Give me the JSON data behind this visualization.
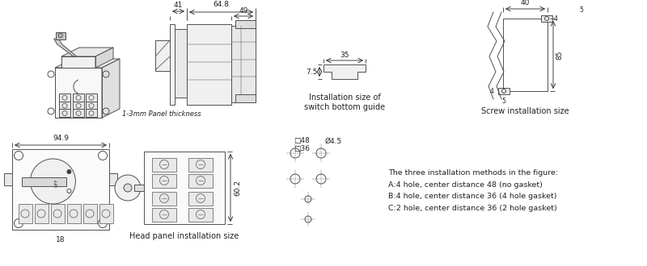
{
  "bg_color": "#ffffff",
  "line_color": "#505050",
  "text_color": "#222222",
  "fig_width": 8.0,
  "fig_height": 3.3,
  "dpi": 100,
  "annotations": {
    "panel_thickness": "1-3mm Panel thickness",
    "switch_guide_title": "Installation size of\nswitch bottom guide",
    "screw_title": "Screw installation size",
    "head_panel_title": "Head panel installation size",
    "three_methods": "The three installation methods in the figure:\nA:4 hole, center distance 48 (no gasket)\nB:4 hole, center distance 36 (4 hole gasket)\nC:2 hole, center distance 36 (2 hole gasket)"
  },
  "dims": {
    "d648": "64.8",
    "d49": "49",
    "d41": "41",
    "d35": "35",
    "d75": "7.5",
    "d40": "40",
    "d85": "85",
    "d5": "5",
    "d4": "4",
    "d949": "94.9",
    "d18": "18",
    "d602": "60.2",
    "d48": "□48",
    "d36": "□36",
    "d45": "Ø4.5"
  }
}
